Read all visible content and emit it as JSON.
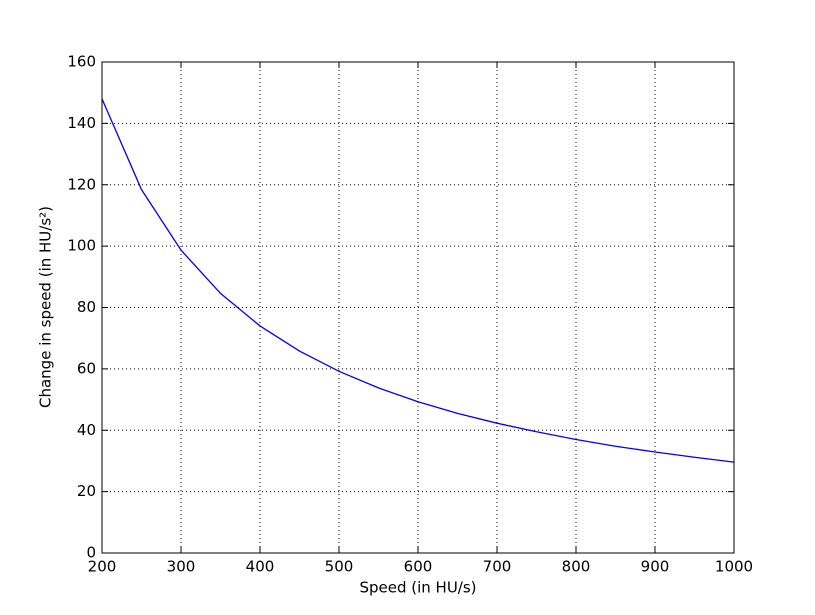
{
  "chart_data": {
    "type": "line",
    "x_label": "Speed (in HU/s)",
    "y_label": "Change in speed (in HU/s²)",
    "x": [
      200,
      250,
      300,
      350,
      400,
      450,
      500,
      550,
      600,
      650,
      700,
      750,
      800,
      850,
      900,
      950,
      1000
    ],
    "series": [
      {
        "color": "#0000ff",
        "values": [
          148,
          118.4,
          98.7,
          84.6,
          74,
          65.8,
          59.2,
          53.8,
          49.3,
          45.5,
          42.3,
          39.5,
          37,
          34.8,
          32.9,
          31.2,
          29.6
        ]
      }
    ],
    "xlim": [
      200,
      1000
    ],
    "xticks": [
      200,
      300,
      400,
      500,
      600,
      700,
      800,
      900,
      1000
    ],
    "ylim": [
      0,
      160
    ],
    "yticks": [
      0,
      20,
      40,
      60,
      80,
      100,
      120,
      140,
      160
    ],
    "grid": true
  }
}
